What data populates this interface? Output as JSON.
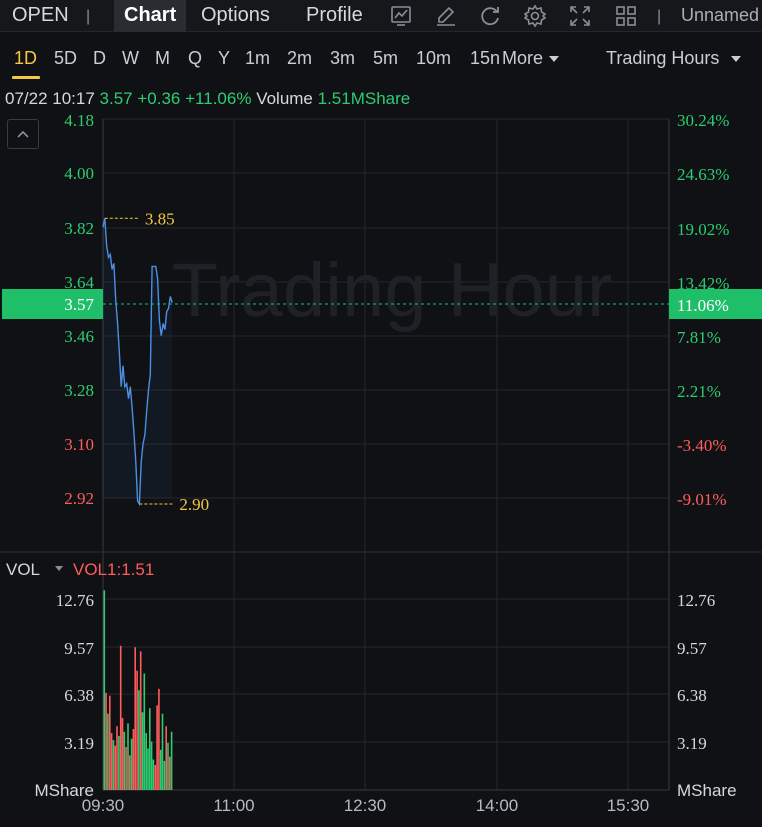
{
  "topbar": {
    "symbol": "OPEN",
    "tabs": [
      {
        "label": "Chart",
        "active": true
      },
      {
        "label": "Options",
        "active": false
      },
      {
        "label": "Profile",
        "active": false
      }
    ],
    "icons": [
      "line-chart-icon",
      "pen-icon",
      "refresh-icon",
      "gear-icon",
      "expand-icon",
      "grid-icon"
    ],
    "layout_name": "Unnamed"
  },
  "periods": {
    "items": [
      "1D",
      "5D",
      "D",
      "W",
      "M",
      "Q",
      "Y",
      "1m",
      "2m",
      "3m",
      "5m",
      "10m",
      "15n"
    ],
    "active": "1D",
    "more_label": "More",
    "session_label": "Trading Hours"
  },
  "info": {
    "datetime": "07/22 10:17",
    "price": "3.57",
    "change": "+0.36",
    "change_pct": "+11.06%",
    "volume_label": "Volume",
    "volume_value": "1.51MShare"
  },
  "watermark": "Trading Hour",
  "chart_data": {
    "type": "line",
    "price_axis": {
      "ticks": [
        "4.18",
        "4.00",
        "3.82",
        "3.64",
        "3.46",
        "3.28",
        "3.10",
        "2.92"
      ],
      "tick_colors": [
        "#2ecc71",
        "#2ecc71",
        "#2ecc71",
        "#2ecc71",
        "#2ecc71",
        "#2ecc71",
        "#ff5c5c",
        "#ff5c5c"
      ],
      "min": 2.92,
      "max": 4.18
    },
    "pct_axis": {
      "ticks": [
        "30.24%",
        "24.63%",
        "19.02%",
        "13.42%",
        "11.06%",
        "7.81%",
        "2.21%",
        "-3.40%",
        "-9.01%"
      ]
    },
    "time_axis": {
      "ticks": [
        "09:30",
        "11:00",
        "12:30",
        "14:00",
        "15:30"
      ],
      "start_min": 570,
      "end_min": 960
    },
    "current_price": "3.57",
    "current_pct": "11.06%",
    "high": {
      "value": 3.85,
      "label": "3.85"
    },
    "low": {
      "value": 2.9,
      "label": "2.90"
    },
    "price_series": [
      [
        0,
        3.82
      ],
      [
        1,
        3.85
      ],
      [
        2,
        3.76
      ],
      [
        3,
        3.72
      ],
      [
        4,
        3.73
      ],
      [
        5,
        3.68
      ],
      [
        6,
        3.7
      ],
      [
        7,
        3.58
      ],
      [
        8,
        3.5
      ],
      [
        9,
        3.4
      ],
      [
        10,
        3.29
      ],
      [
        11,
        3.36
      ],
      [
        12,
        3.29
      ],
      [
        13,
        3.3
      ],
      [
        14,
        3.25
      ],
      [
        15,
        3.29
      ],
      [
        16,
        3.22
      ],
      [
        17,
        3.14
      ],
      [
        18,
        3.04
      ],
      [
        19,
        2.91
      ],
      [
        20,
        2.9
      ],
      [
        21,
        3.04
      ],
      [
        22,
        3.1
      ],
      [
        23,
        3.13
      ],
      [
        24,
        3.21
      ],
      [
        25,
        3.28
      ],
      [
        26,
        3.33
      ],
      [
        27,
        3.69
      ],
      [
        28,
        3.69
      ],
      [
        29,
        3.69
      ],
      [
        30,
        3.65
      ],
      [
        31,
        3.51
      ],
      [
        32,
        3.46
      ],
      [
        33,
        3.5
      ],
      [
        34,
        3.48
      ],
      [
        35,
        3.54
      ],
      [
        36,
        3.55
      ],
      [
        37,
        3.59
      ],
      [
        38,
        3.57
      ]
    ],
    "volume_panel": {
      "label": "VOL",
      "indicator": "VOL1:1.51",
      "unit": "MShare",
      "ticks": [
        "12.76",
        "9.57",
        "6.38",
        "3.19"
      ],
      "max": 15.0,
      "bars": [
        [
          0,
          14.4,
          "up"
        ],
        [
          1,
          7.0,
          "down"
        ],
        [
          2,
          5.5,
          "up"
        ],
        [
          3,
          6.8,
          "down"
        ],
        [
          4,
          4.1,
          "down"
        ],
        [
          5,
          3.6,
          "up"
        ],
        [
          6,
          3.2,
          "down"
        ],
        [
          7,
          4.6,
          "down"
        ],
        [
          8,
          3.9,
          "up"
        ],
        [
          9,
          10.4,
          "down"
        ],
        [
          10,
          5.2,
          "down"
        ],
        [
          11,
          4.2,
          "up"
        ],
        [
          12,
          3.1,
          "down"
        ],
        [
          13,
          4.8,
          "up"
        ],
        [
          14,
          2.5,
          "down"
        ],
        [
          15,
          3.7,
          "up"
        ],
        [
          16,
          4.4,
          "down"
        ],
        [
          17,
          10.3,
          "down"
        ],
        [
          18,
          8.6,
          "down"
        ],
        [
          19,
          7.2,
          "up"
        ],
        [
          20,
          10.0,
          "down"
        ],
        [
          21,
          5.6,
          "up"
        ],
        [
          22,
          8.4,
          "up"
        ],
        [
          23,
          4.1,
          "up"
        ],
        [
          24,
          3.0,
          "up"
        ],
        [
          25,
          5.9,
          "up"
        ],
        [
          26,
          3.5,
          "up"
        ],
        [
          27,
          2.2,
          "up"
        ],
        [
          28,
          1.8,
          "down"
        ],
        [
          29,
          6.1,
          "down"
        ],
        [
          30,
          7.3,
          "down"
        ],
        [
          31,
          2.9,
          "up"
        ],
        [
          32,
          5.5,
          "up"
        ],
        [
          33,
          2.1,
          "up"
        ],
        [
          34,
          4.6,
          "down"
        ],
        [
          35,
          3.4,
          "up"
        ],
        [
          36,
          2.4,
          "down"
        ],
        [
          37,
          4.2,
          "up"
        ]
      ]
    }
  },
  "colors": {
    "up": "#2ecc71",
    "down": "#ff5c5c",
    "line": "#4a90e2",
    "highlow": "#f5c842",
    "current_band": "#1fbf6a"
  }
}
